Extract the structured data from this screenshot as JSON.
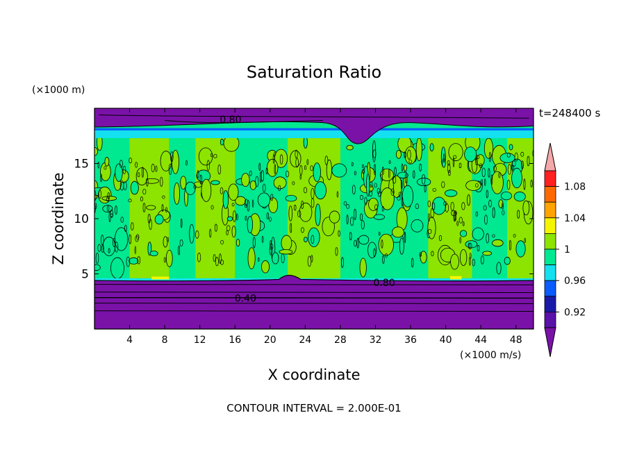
{
  "chart_data": {
    "type": "heatmap",
    "title": "Saturation Ratio",
    "xlabel": "X coordinate",
    "ylabel": "Z coordinate",
    "x_unit": "(×1000 m/s)",
    "y_unit": "(×1000 m)",
    "time_label": "t=248400 s",
    "footer": "CONTOUR INTERVAL = 2.000E-01",
    "xlim": [
      0,
      50
    ],
    "ylim": [
      0,
      20
    ],
    "x_ticks": [
      4,
      8,
      12,
      16,
      20,
      24,
      28,
      32,
      36,
      40,
      44,
      48
    ],
    "y_ticks": [
      5,
      10,
      15
    ],
    "contour_labels": [
      {
        "text": "0.80",
        "x": 15.5,
        "y": 19.0
      },
      {
        "text": "0.80",
        "x": 33.0,
        "y": 4.2
      },
      {
        "text": "0.40",
        "x": 17.2,
        "y": 2.8
      }
    ],
    "colorbar": {
      "levels": [
        0.92,
        0.96,
        1,
        1.04,
        1.08
      ],
      "tick_labels": [
        "0.92",
        "0.96",
        "1",
        "1.04",
        "1.08"
      ],
      "bands": [
        {
          "range": "<0.90",
          "color": "#7a12a8"
        },
        {
          "range": "0.90-0.92",
          "color": "#5a12a8"
        },
        {
          "range": "0.92-0.94",
          "color": "#1a1aa8"
        },
        {
          "range": "0.94-0.96",
          "color": "#0a5cff"
        },
        {
          "range": "0.96-0.98",
          "color": "#14e0f0"
        },
        {
          "range": "0.98-1.00",
          "color": "#00e890"
        },
        {
          "range": "1.00-1.02",
          "color": "#8ce400"
        },
        {
          "range": "1.02-1.04",
          "color": "#f5f500"
        },
        {
          "range": "1.04-1.06",
          "color": "#ffa400"
        },
        {
          "range": "1.06-1.08",
          "color": "#ff6a00"
        },
        {
          "range": "1.08-1.10",
          "color": "#ff2020"
        },
        {
          "range": ">1.10",
          "color": "#f4a8a8"
        }
      ]
    },
    "regions": {
      "lower_dry_layer_top_z": 4.4,
      "upper_dry_layer_bottom_z": 18.0,
      "saturated_columns_x": [
        [
          4,
          8.5
        ],
        [
          11.5,
          16
        ],
        [
          22,
          28
        ],
        [
          38,
          43
        ],
        [
          47,
          50
        ]
      ]
    }
  }
}
